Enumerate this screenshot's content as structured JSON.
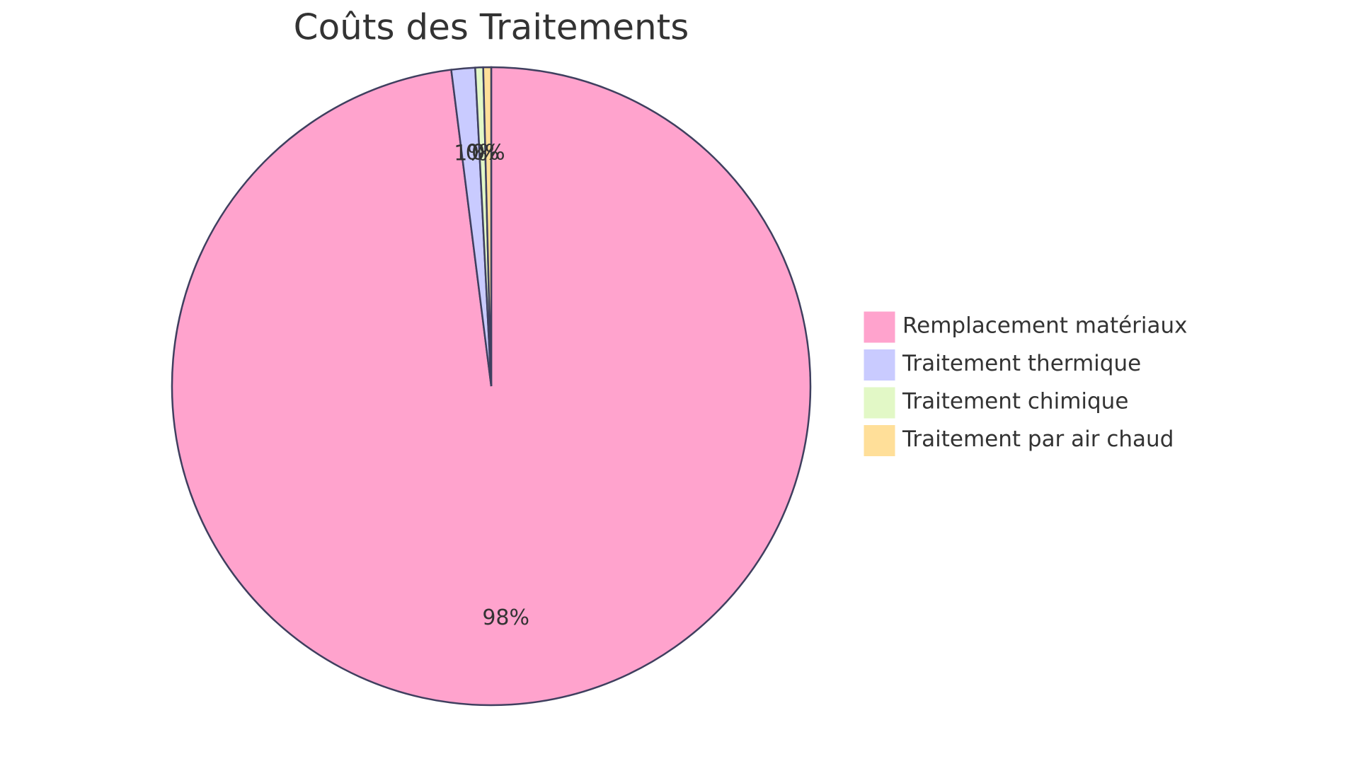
{
  "chart_data": {
    "type": "pie",
    "title": "Coûts des Traitements",
    "categories": [
      "Remplacement matériaux",
      "Traitement thermique",
      "Traitement chimique",
      "Traitement par air chaud"
    ],
    "values": [
      98.0,
      1.2,
      0.4,
      0.4
    ],
    "value_labels": [
      "98%",
      "1%",
      "0%",
      "0%"
    ],
    "colors": [
      "#ffa3cd",
      "#c9cbff",
      "#e2f8c6",
      "#ffdf99"
    ]
  }
}
